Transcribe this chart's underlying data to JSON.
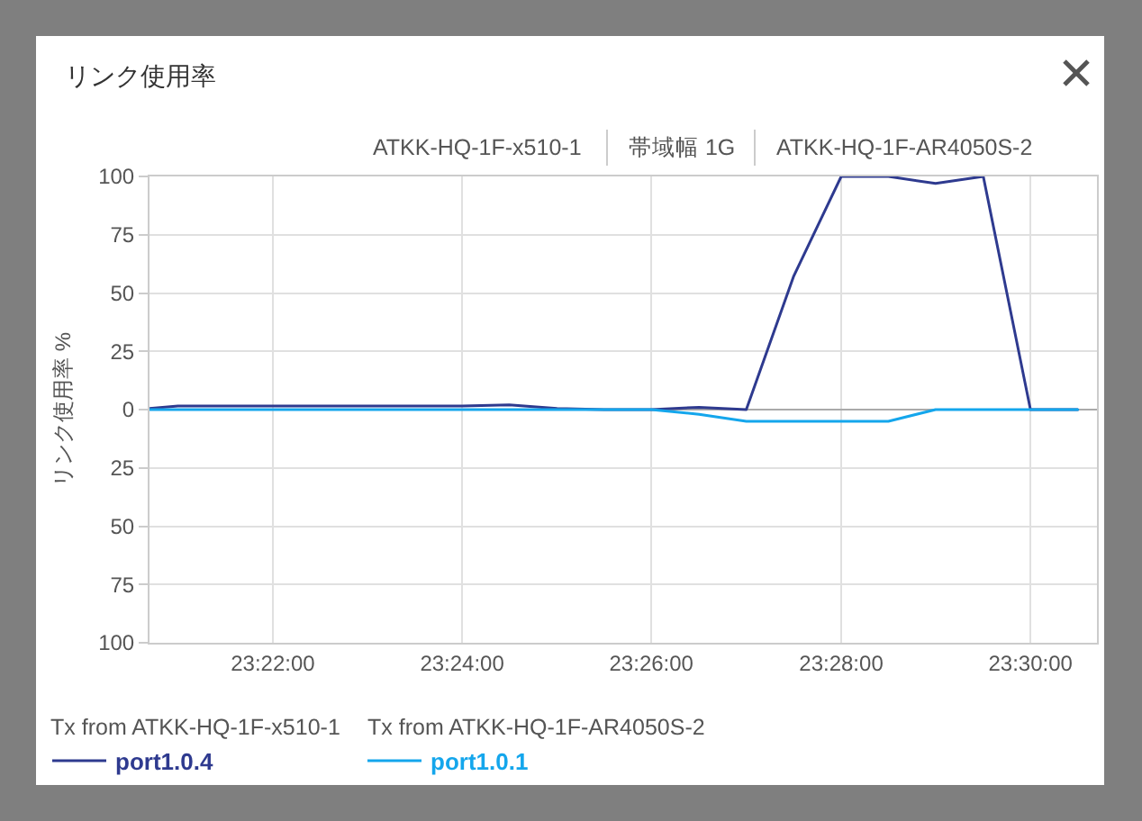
{
  "chart_data": {
    "type": "line",
    "title": "リンク使用率",
    "ylabel": "リンク使用率 %",
    "annotations": [
      "ATKK-HQ-1F-x510-1",
      "帯域幅 1G",
      "ATKK-HQ-1F-AR4050S-2",
      "Tx from ATKK-HQ-1F-x510-1",
      "Tx from ATKK-HQ-1F-AR4050S-2"
    ],
    "x": [
      23.345,
      23.35,
      23.3583,
      23.3667,
      23.375,
      23.3833,
      23.3917,
      23.4,
      23.4083,
      23.4167,
      23.425,
      23.4333,
      23.4417,
      23.45,
      23.4583,
      23.4667,
      23.475,
      23.4833,
      23.4917,
      23.5,
      23.5083
    ],
    "series": [
      {
        "name": "port1.0.4",
        "color": "#2e3a8f",
        "values": [
          0.5,
          1.5,
          1.5,
          1.5,
          1.5,
          1.5,
          1.5,
          1.5,
          2,
          0.5,
          0,
          0,
          1,
          0,
          57,
          100,
          100,
          97,
          100,
          0,
          0
        ]
      },
      {
        "name": "port1.0.1",
        "color": "#14a6ec",
        "values": [
          0,
          0,
          0,
          0,
          0,
          0,
          0,
          0,
          0,
          0,
          0,
          0,
          -2,
          -5,
          -5,
          -5,
          -5,
          0,
          0,
          0,
          0
        ]
      }
    ],
    "xlim": [
      23.345,
      23.5117
    ],
    "xticks": [
      {
        "value": 23.3667,
        "label": "23:22:00"
      },
      {
        "value": 23.4,
        "label": "23:24:00"
      },
      {
        "value": 23.4333,
        "label": "23:26:00"
      },
      {
        "value": 23.4667,
        "label": "23:28:00"
      },
      {
        "value": 23.5,
        "label": "23:30:00"
      }
    ],
    "ylim": [
      -100,
      100
    ],
    "yticks": [
      {
        "value": -100,
        "label": "100"
      },
      {
        "value": -75,
        "label": "75"
      },
      {
        "value": -50,
        "label": "50"
      },
      {
        "value": -25,
        "label": "25"
      },
      0,
      25,
      50,
      75,
      100
    ],
    "grid": true,
    "legend": "bottom left"
  }
}
